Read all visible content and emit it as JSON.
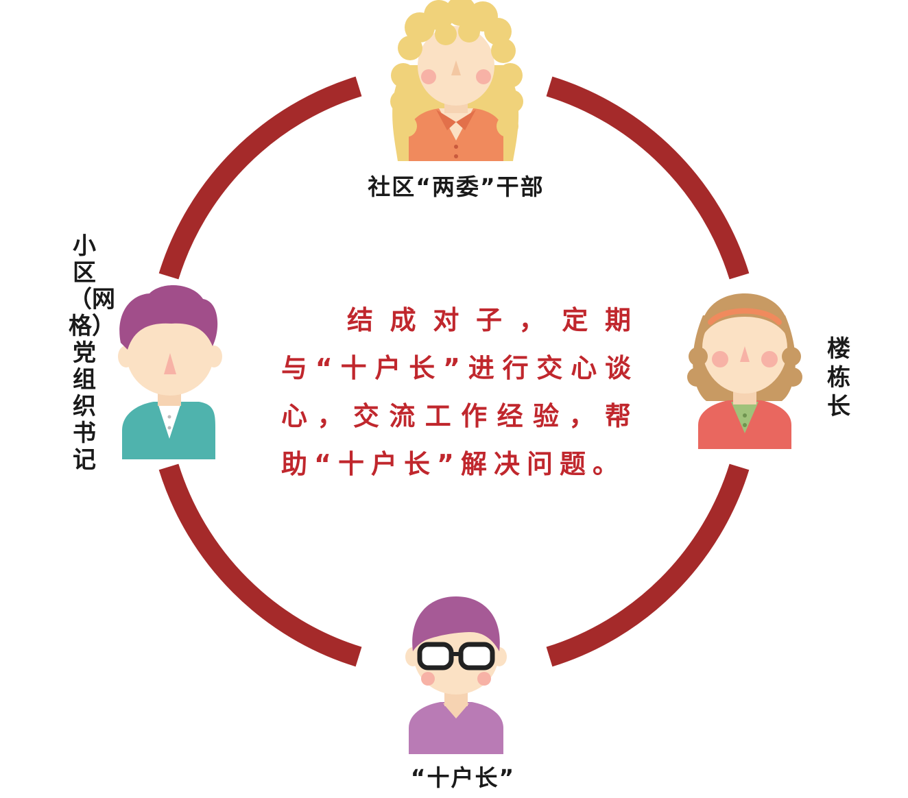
{
  "colors": {
    "ring": "#a52a2a",
    "text_accent": "#c0272d",
    "label_text": "#1a1a1a"
  },
  "nodes": {
    "top": {
      "label": "社区“两委”干部",
      "icon": "woman-curly-blonde-avatar-icon"
    },
    "left": {
      "label": "小区（网格）党组织书记",
      "icon": "man-purple-hair-avatar-icon"
    },
    "right": {
      "label": "楼栋长",
      "icon": "woman-headband-avatar-icon"
    },
    "bottom": {
      "label": "“十户长”",
      "icon": "person-glasses-avatar-icon"
    }
  },
  "center_text": "结成对子，定期与“十户长”进行交心谈心，交流工作经验，帮助“十户长”解决问题。"
}
